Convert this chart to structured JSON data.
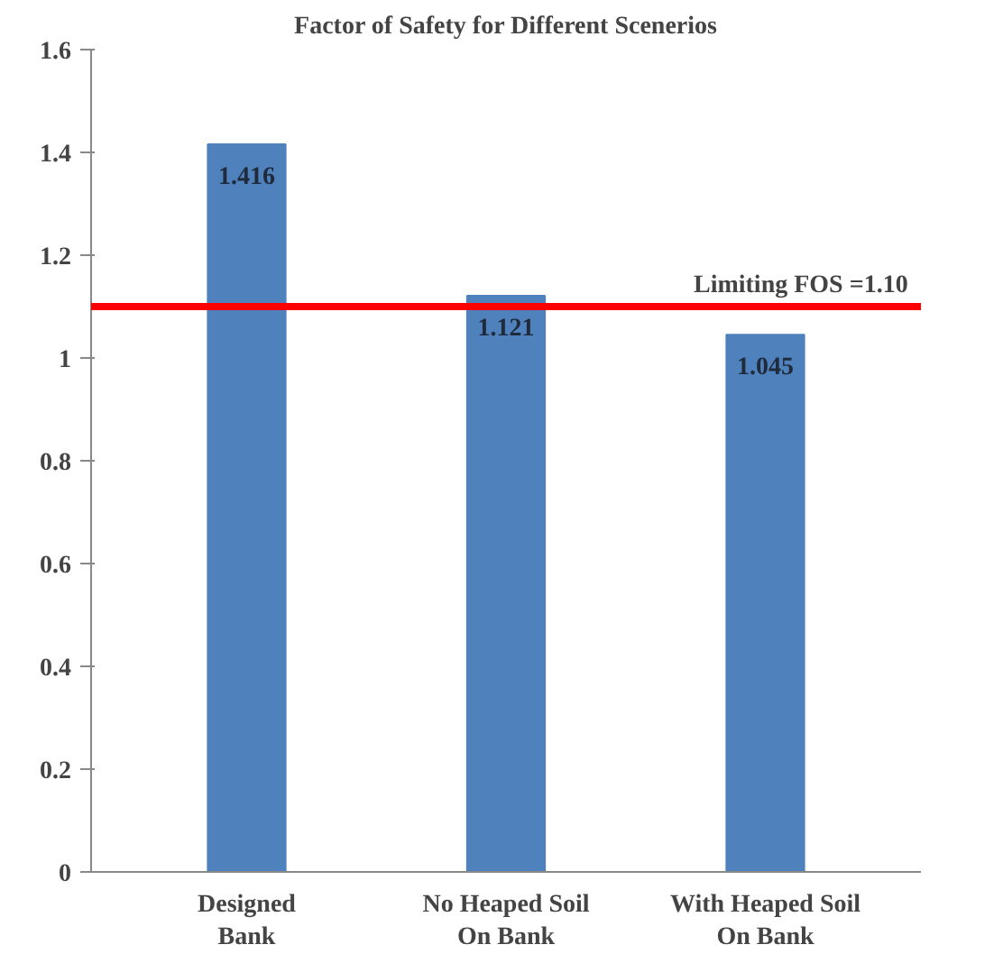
{
  "chart_data": {
    "type": "bar",
    "title": "Factor of Safety for Different Scenerios",
    "categories": [
      "Designed\nBank",
      "No Heaped Soil\nOn Bank",
      "With Heaped Soil\nOn Bank"
    ],
    "values": [
      1.416,
      1.121,
      1.045
    ],
    "color": "#4f81bd",
    "data_labels": true,
    "ylim": [
      0,
      1.6
    ],
    "yticks": [
      0,
      0.2,
      0.4,
      0.6,
      0.8,
      1,
      1.2,
      1.4,
      1.6
    ],
    "grid": false,
    "ref_lines": [
      {
        "axis": "y",
        "value": 1.1,
        "label": "Limiting FOS =1.10",
        "color": "#ff0000"
      }
    ]
  }
}
